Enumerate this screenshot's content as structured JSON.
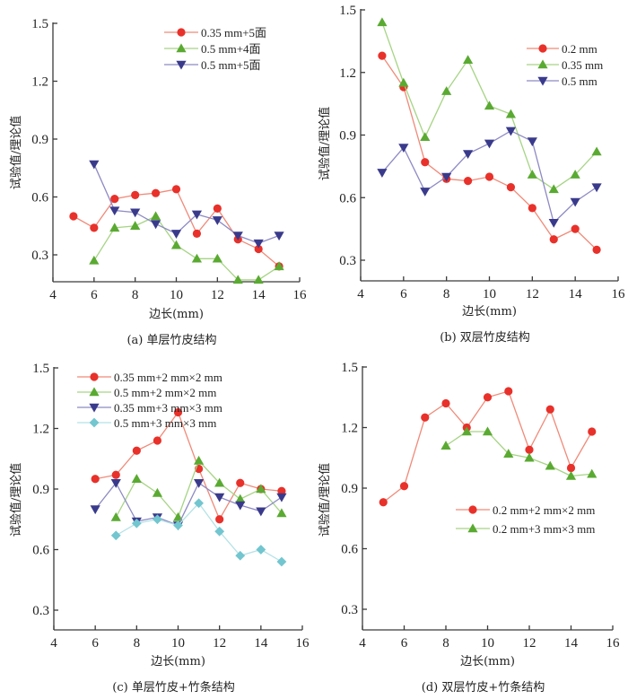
{
  "figure": {
    "panel_colors": {
      "red": {
        "marker": "#e8312a",
        "line": "#f08a78"
      },
      "green": {
        "marker": "#5aaa32",
        "line": "#a6d484"
      },
      "blue": {
        "marker": "#3a3a8c",
        "line": "#8c8ac4"
      },
      "cyan": {
        "marker": "#72c6cf",
        "line": "#b4e2e6"
      }
    }
  },
  "chart_data": [
    {
      "id": "a",
      "type": "line",
      "caption": "(a) 单层竹皮结构",
      "xlabel": "边长(mm)",
      "ylabel": "试验值/理论值",
      "xlim": [
        4,
        16
      ],
      "ylim": [
        0.16,
        1.5
      ],
      "xticks": [
        4,
        6,
        8,
        10,
        12,
        14,
        16
      ],
      "yticks": [
        0.3,
        0.6,
        0.9,
        1.2,
        1.5
      ],
      "xtick_labels": [
        "4",
        "6",
        "8",
        "10",
        "12",
        "14",
        "16"
      ],
      "ytick_labels": [
        "0.3",
        "0.6",
        "0.9",
        "1.2",
        "1.5"
      ],
      "grid": false,
      "legend_position": "top-right",
      "series": [
        {
          "name": "0.35 mm+5面",
          "color": "red",
          "marker": "circle",
          "x": [
            5,
            6,
            7,
            8,
            9,
            10,
            11,
            12,
            13,
            14,
            15
          ],
          "y": [
            0.5,
            0.44,
            0.59,
            0.61,
            0.62,
            0.64,
            0.41,
            0.54,
            0.38,
            0.33,
            0.24
          ]
        },
        {
          "name": "0.5 mm+4面",
          "color": "green",
          "marker": "triangle-up",
          "x": [
            6,
            7,
            8,
            9,
            10,
            11,
            12,
            13,
            14,
            15
          ],
          "y": [
            0.27,
            0.44,
            0.45,
            0.5,
            0.35,
            0.28,
            0.28,
            0.17,
            0.17,
            0.24
          ]
        },
        {
          "name": "0.5 mm+5面",
          "color": "blue",
          "marker": "triangle-down",
          "x": [
            6,
            7,
            8,
            9,
            10,
            11,
            12,
            13,
            14,
            15
          ],
          "y": [
            0.77,
            0.53,
            0.52,
            0.46,
            0.41,
            0.51,
            0.48,
            0.4,
            0.36,
            0.4
          ]
        }
      ]
    },
    {
      "id": "b",
      "type": "line",
      "caption": "(b) 双层竹皮结构",
      "xlabel": "边长(mm)",
      "ylabel": "试验值/理论值",
      "xlim": [
        4,
        16
      ],
      "ylim": [
        0.2,
        1.5
      ],
      "xticks": [
        4,
        6,
        8,
        10,
        12,
        14,
        16
      ],
      "yticks": [
        0.3,
        0.6,
        0.9,
        1.2,
        1.5
      ],
      "xtick_labels": [
        "4",
        "6",
        "8",
        "10",
        "12",
        "14",
        "16"
      ],
      "ytick_labels": [
        "0.3",
        "0.6",
        "0.9",
        "1.2",
        "1.5"
      ],
      "grid": false,
      "legend_position": "top-right",
      "series": [
        {
          "name": "0.2 mm",
          "color": "red",
          "marker": "circle",
          "x": [
            5,
            6,
            7,
            8,
            9,
            10,
            11,
            12,
            13,
            14,
            15
          ],
          "y": [
            1.28,
            1.13,
            0.77,
            0.69,
            0.68,
            0.7,
            0.65,
            0.55,
            0.4,
            0.45,
            0.35
          ]
        },
        {
          "name": "0.35 mm",
          "color": "green",
          "marker": "triangle-up",
          "x": [
            5,
            6,
            7,
            8,
            9,
            10,
            11,
            12,
            13,
            14,
            15
          ],
          "y": [
            1.44,
            1.15,
            0.89,
            1.11,
            1.26,
            1.04,
            1.0,
            0.71,
            0.64,
            0.71,
            0.82
          ]
        },
        {
          "name": "0.5 mm",
          "color": "blue",
          "marker": "triangle-down",
          "x": [
            5,
            6,
            7,
            8,
            9,
            10,
            11,
            12,
            13,
            14,
            15
          ],
          "y": [
            0.72,
            0.84,
            0.63,
            0.7,
            0.81,
            0.86,
            0.92,
            0.87,
            0.48,
            0.58,
            0.65
          ]
        }
      ]
    },
    {
      "id": "c",
      "type": "line",
      "caption": "(c) 单层竹皮+竹条结构",
      "xlabel": "边长(mm)",
      "ylabel": "试验值/理论值",
      "xlim": [
        4,
        16
      ],
      "ylim": [
        0.2,
        1.5
      ],
      "xticks": [
        4,
        6,
        8,
        10,
        12,
        14,
        16
      ],
      "yticks": [
        0.3,
        0.6,
        0.9,
        1.2,
        1.5
      ],
      "xtick_labels": [
        "4",
        "6",
        "8",
        "10",
        "12",
        "14",
        "16"
      ],
      "ytick_labels": [
        "0.3",
        "0.6",
        "0.9",
        "1.2",
        "1.5"
      ],
      "grid": false,
      "legend_position": "top-left",
      "series": [
        {
          "name": "0.35 mm+2 mm×2 mm",
          "color": "red",
          "marker": "circle",
          "x": [
            6,
            7,
            8,
            9,
            10,
            11,
            12,
            13,
            14,
            15
          ],
          "y": [
            0.95,
            0.97,
            1.09,
            1.14,
            1.28,
            1.0,
            0.75,
            0.93,
            0.9,
            0.89
          ]
        },
        {
          "name": "0.5 mm+2 mm×2 mm",
          "color": "green",
          "marker": "triangle-up",
          "x": [
            7,
            8,
            9,
            10,
            11,
            12,
            13,
            14,
            15
          ],
          "y": [
            0.76,
            0.95,
            0.88,
            0.76,
            1.04,
            0.93,
            0.85,
            0.9,
            0.78
          ]
        },
        {
          "name": "0.35 mm+3 mm×3 mm",
          "color": "blue",
          "marker": "triangle-down",
          "x": [
            6,
            7,
            8,
            9,
            10,
            11,
            12,
            13,
            14,
            15
          ],
          "y": [
            0.8,
            0.93,
            0.74,
            0.76,
            0.72,
            0.93,
            0.86,
            0.82,
            0.79,
            0.86
          ]
        },
        {
          "name": "0.5 mm+3 mm×3 mm",
          "color": "cyan",
          "marker": "diamond",
          "x": [
            7,
            8,
            9,
            10,
            11,
            12,
            13,
            14,
            15
          ],
          "y": [
            0.67,
            0.73,
            0.75,
            0.72,
            0.83,
            0.69,
            0.57,
            0.6,
            0.54
          ]
        }
      ]
    },
    {
      "id": "d",
      "type": "line",
      "caption": "(d) 双层竹皮+竹条结构",
      "xlabel": "边长(mm)",
      "ylabel": "试验值/理论值",
      "xlim": [
        4,
        16
      ],
      "ylim": [
        0.2,
        1.5
      ],
      "xticks": [
        4,
        6,
        8,
        10,
        12,
        14,
        16
      ],
      "yticks": [
        0.3,
        0.6,
        0.9,
        1.2,
        1.5
      ],
      "xtick_labels": [
        "4",
        "6",
        "8",
        "10",
        "12",
        "14",
        "16"
      ],
      "ytick_labels": [
        "0.3",
        "0.6",
        "0.9",
        "1.2",
        "1.5"
      ],
      "grid": false,
      "legend_position": "middle-right",
      "series": [
        {
          "name": "0.2 mm+2 mm×2 mm",
          "color": "red",
          "marker": "circle",
          "x": [
            5,
            6,
            7,
            8,
            9,
            10,
            11,
            12,
            13,
            14,
            15
          ],
          "y": [
            0.83,
            0.91,
            1.25,
            1.32,
            1.2,
            1.35,
            1.38,
            1.09,
            1.29,
            1.0,
            1.18
          ]
        },
        {
          "name": "0.2 mm+3 mm×3 mm",
          "color": "green",
          "marker": "triangle-up",
          "x": [
            8,
            9,
            10,
            11,
            12,
            13,
            14,
            15
          ],
          "y": [
            1.11,
            1.18,
            1.18,
            1.07,
            1.05,
            1.01,
            0.96,
            0.97
          ]
        }
      ]
    }
  ]
}
